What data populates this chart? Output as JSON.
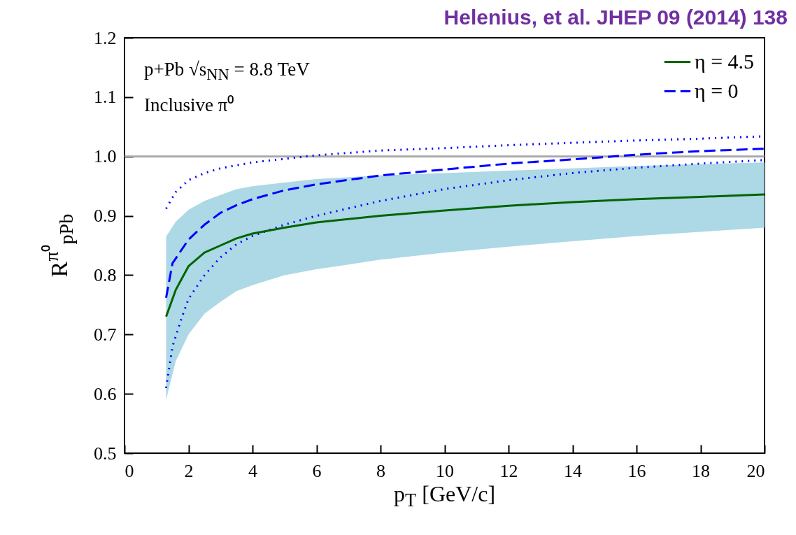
{
  "chart_data": {
    "type": "line",
    "xlabel": "p$_{T}$ [GeV/c]",
    "ylabel": "R$^{π⁰}$$_{pPb}$",
    "annotations": [
      "Helenius, et al. JHEP 09 (2014) 138",
      "p+Pb √s$_{NN}$ = 8.8 TeV",
      "Inclusive π⁰"
    ],
    "xlim": [
      0,
      20
    ],
    "xticks": [
      0,
      2,
      4,
      6,
      8,
      10,
      12,
      14,
      16,
      18,
      20
    ],
    "ylim": [
      0.5,
      1.2
    ],
    "yticks": [
      0.5,
      0.6,
      0.7,
      0.8,
      0.9,
      {
        "value": 1,
        "label": "1.0"
      },
      1.1,
      1.2
    ],
    "grid": false,
    "legend": "top right",
    "ref_lines": [
      {
        "axis": "y",
        "value": 1,
        "color": "#aaaaaa"
      }
    ],
    "series": [
      {
        "name": "η = 4.5",
        "color": "#006400",
        "line_style": "solid",
        "x": [
          1.3,
          1.6,
          2,
          2.5,
          3,
          3.5,
          4,
          5,
          6,
          8,
          10,
          12,
          14,
          16,
          18,
          20
        ],
        "values": [
          0.73,
          0.775,
          0.815,
          0.838,
          0.85,
          0.862,
          0.87,
          0.88,
          0.889,
          0.9,
          0.909,
          0.917,
          0.923,
          0.928,
          0.932,
          0.936
        ],
        "lower": [
          0.59,
          0.655,
          0.7,
          0.735,
          0.755,
          0.773,
          0.783,
          0.8,
          0.81,
          0.826,
          0.838,
          0.848,
          0.857,
          0.866,
          0.873,
          0.88
        ],
        "upper": [
          0.865,
          0.89,
          0.91,
          0.925,
          0.935,
          0.945,
          0.95,
          0.956,
          0.962,
          0.968,
          0.972,
          0.976,
          0.98,
          0.984,
          0.987,
          0.99
        ]
      },
      {
        "name": "η = 0",
        "color": "#0000ff",
        "line_style": "dashed",
        "x": [
          1.3,
          1.5,
          2,
          2.5,
          3,
          3.5,
          4,
          5,
          6,
          8,
          10,
          12,
          14,
          16,
          18,
          20
        ],
        "values": [
          0.762,
          0.82,
          0.86,
          0.885,
          0.905,
          0.918,
          0.928,
          0.943,
          0.953,
          0.968,
          0.978,
          0.988,
          0.995,
          1.003,
          1.009,
          1.013
        ]
      },
      {
        "color": "#0000ff",
        "line_style": "dotted",
        "x": [
          1.3,
          1.6,
          2,
          2.5,
          3,
          4,
          5,
          6,
          8,
          10,
          12,
          14,
          16,
          18,
          20
        ],
        "values": [
          0.912,
          0.94,
          0.96,
          0.972,
          0.98,
          0.99,
          0.996,
          1.002,
          1.01,
          1.014,
          1.019,
          1.023,
          1.027,
          1.03,
          1.034
        ]
      },
      {
        "color": "#0000ff",
        "line_style": "dotted",
        "x": [
          1.3,
          1.5,
          1.8,
          2,
          2.5,
          3,
          3.5,
          4,
          5,
          6,
          8,
          10,
          12,
          14,
          16,
          18,
          20
        ],
        "values": [
          0.61,
          0.68,
          0.73,
          0.76,
          0.8,
          0.83,
          0.852,
          0.866,
          0.885,
          0.9,
          0.925,
          0.945,
          0.96,
          0.972,
          0.981,
          0.988,
          0.994
        ]
      }
    ]
  }
}
